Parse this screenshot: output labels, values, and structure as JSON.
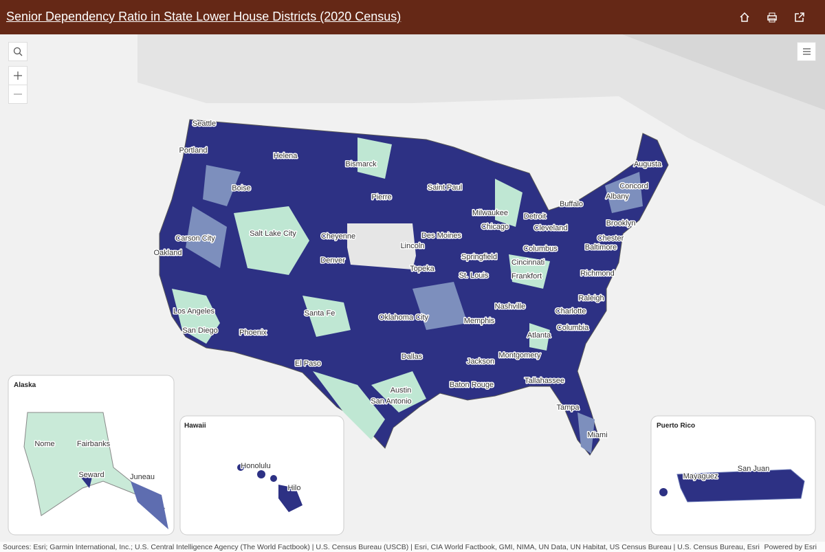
{
  "header": {
    "title": "Senior Dependency Ratio in State Lower House Districts (2020 Census)"
  },
  "map": {
    "cities": [
      "Seattle",
      "Portland",
      "Helena",
      "Bismarck",
      "Boise",
      "Saint Paul",
      "Pierre",
      "Augusta",
      "Concord",
      "Albany",
      "Buffalo",
      "Milwaukee",
      "Detroit",
      "Chicago",
      "Cleveland",
      "Brooklyn",
      "Salt Lake City",
      "Cheyenne",
      "Lincoln",
      "Des Moines",
      "Carson City",
      "Chester",
      "Baltimore",
      "Columbus",
      "Oakland",
      "Springfield",
      "Denver",
      "Cincinnati",
      "Topeka",
      "St. Louis",
      "Frankfort",
      "Richmond",
      "Raleigh",
      "Nashville",
      "Los Angeles",
      "Santa Fe",
      "Oklahoma City",
      "Charlotte",
      "Memphis",
      "Columbia",
      "San Diego",
      "Phoenix",
      "Atlanta",
      "Montgomery",
      "Dallas",
      "El Paso",
      "Jackson",
      "Tallahassee",
      "Baton Rouge",
      "Austin",
      "San Antonio",
      "Tampa",
      "Miami"
    ]
  },
  "insets": [
    {
      "title": "Alaska",
      "cities": [
        "Nome",
        "Fairbanks",
        "Seward",
        "Juneau"
      ]
    },
    {
      "title": "Hawaii",
      "cities": [
        "Honolulu",
        "Hilo"
      ]
    },
    {
      "title": "Puerto Rico",
      "cities": [
        "San Juan",
        "Mayaguez"
      ]
    }
  ],
  "footer": {
    "attribution": "Sources: Esri; Garmin International, Inc.; U.S. Central Intelligence Agency (The World Factbook) | U.S. Census Bureau (USCB) | Esri, CIA World Factbook, GMI, NIMA, UN Data, UN Habitat, US Census Bureau | U.S. Census Bureau, Esri",
    "powered_by": "Powered by Esri"
  }
}
